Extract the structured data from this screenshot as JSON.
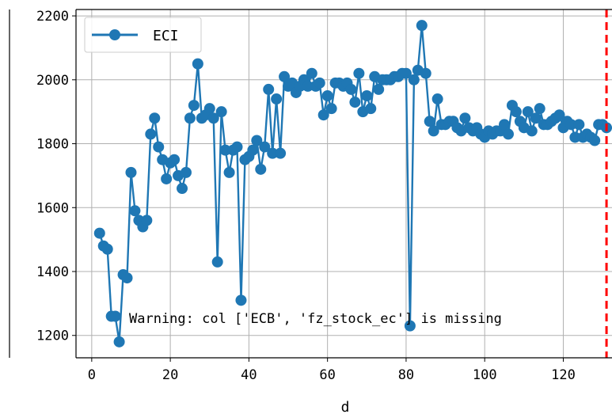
{
  "chart_data": {
    "type": "line",
    "xlabel": "d",
    "ylabel": "",
    "xlim": [
      -4,
      133
    ],
    "ylim": [
      1130,
      2220
    ],
    "xticks": [
      0,
      20,
      40,
      60,
      80,
      100,
      120
    ],
    "yticks": [
      1200,
      1400,
      1600,
      1800,
      2000,
      2200
    ],
    "grid": true,
    "legend_position": "top-left",
    "vline": {
      "x": 131,
      "color": "#ff0000",
      "style": "dashed"
    },
    "annotation": "Warning: col ['ECB', 'fz_stock_ec'] is missing",
    "series": [
      {
        "name": "ECI",
        "color": "#1f77b4",
        "x": [
          2,
          3,
          4,
          5,
          6,
          7,
          8,
          9,
          10,
          11,
          12,
          13,
          14,
          15,
          16,
          17,
          18,
          19,
          20,
          21,
          22,
          23,
          24,
          25,
          26,
          27,
          28,
          29,
          30,
          31,
          32,
          33,
          34,
          35,
          36,
          37,
          38,
          39,
          40,
          41,
          42,
          43,
          44,
          45,
          46,
          47,
          48,
          49,
          50,
          51,
          52,
          53,
          54,
          55,
          56,
          57,
          58,
          59,
          60,
          61,
          62,
          63,
          64,
          65,
          66,
          67,
          68,
          69,
          70,
          71,
          72,
          73,
          74,
          75,
          76,
          77,
          78,
          79,
          80,
          81,
          82,
          83,
          84,
          85,
          86,
          87,
          88,
          89,
          90,
          91,
          92,
          93,
          94,
          95,
          96,
          97,
          98,
          99,
          100,
          101,
          102,
          103,
          104,
          105,
          106,
          107,
          108,
          109,
          110,
          111,
          112,
          113,
          114,
          115,
          116,
          117,
          118,
          119,
          120,
          121,
          122,
          123,
          124,
          125,
          126,
          127,
          128,
          129,
          130,
          131
        ],
        "values": [
          1520,
          1480,
          1470,
          1260,
          1260,
          1180,
          1390,
          1380,
          1710,
          1590,
          1560,
          1540,
          1560,
          1830,
          1880,
          1790,
          1750,
          1690,
          1740,
          1750,
          1700,
          1660,
          1710,
          1880,
          1920,
          2050,
          1880,
          1890,
          1910,
          1880,
          1430,
          1900,
          1780,
          1710,
          1780,
          1790,
          1310,
          1750,
          1760,
          1780,
          1810,
          1720,
          1790,
          1970,
          1770,
          1940,
          1770,
          2010,
          1980,
          1990,
          1960,
          1980,
          2000,
          1980,
          2020,
          1980,
          1990,
          1890,
          1950,
          1910,
          1990,
          1990,
          1980,
          1990,
          1970,
          1930,
          2020,
          1900,
          1950,
          1910,
          2010,
          1970,
          2000,
          2000,
          2000,
          2010,
          2010,
          2020,
          2020,
          1230,
          2000,
          2030,
          2170,
          2020,
          1870,
          1840,
          1940,
          1860,
          1860,
          1870,
          1870,
          1850,
          1840,
          1880,
          1850,
          1840,
          1850,
          1830,
          1820,
          1840,
          1830,
          1840,
          1840,
          1860,
          1830,
          1920,
          1900,
          1870,
          1850,
          1900,
          1840,
          1880,
          1910,
          1860,
          1860,
          1870,
          1880,
          1890,
          1850,
          1870,
          1860,
          1820,
          1860,
          1820,
          1830,
          1820,
          1810,
          1860,
          1860,
          1850
        ]
      }
    ]
  }
}
